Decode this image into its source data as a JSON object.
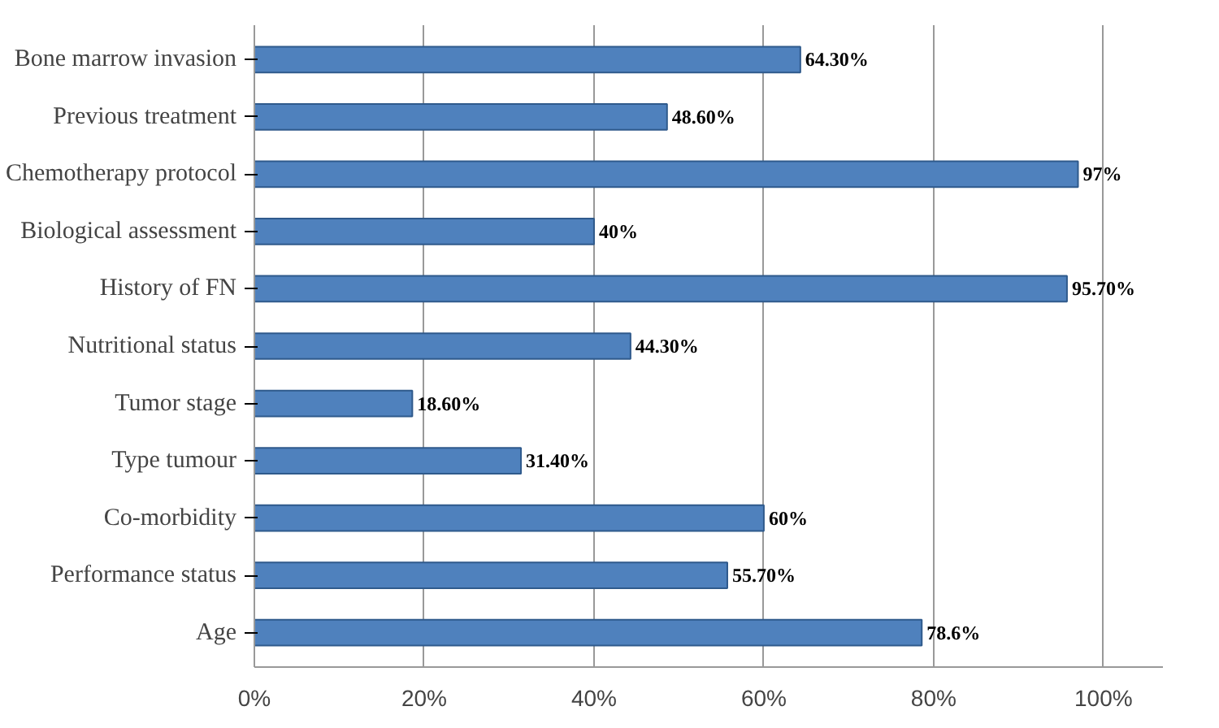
{
  "chart_data": {
    "type": "bar",
    "orientation": "horizontal",
    "categories": [
      "Bone marrow invasion",
      "Previous treatment",
      "Chemotherapy protocol",
      "Biological assessment",
      "History of FN",
      "Nutritional status",
      "Tumor stage",
      "Type tumour",
      "Co-morbidity",
      "Performance status",
      "Age"
    ],
    "values": [
      64.3,
      48.6,
      97,
      40,
      95.7,
      44.3,
      18.6,
      31.4,
      60,
      55.7,
      78.6
    ],
    "value_labels": [
      "64.30%",
      "48.60%",
      "97%",
      "40%",
      "95.70%",
      "44.30%",
      "18.60%",
      "31.40%",
      "60%",
      "55.70%",
      "78.6%"
    ],
    "color": "#4f81bd",
    "xlim": [
      0,
      107
    ],
    "xticks": [
      {
        "value": 0,
        "label": "0%"
      },
      {
        "value": 20,
        "label": "20%"
      },
      {
        "value": 40,
        "label": "40%"
      },
      {
        "value": 60,
        "label": "60%"
      },
      {
        "value": 80,
        "label": "80%"
      },
      {
        "value": 100,
        "label": "100%"
      }
    ],
    "grid": "x"
  }
}
